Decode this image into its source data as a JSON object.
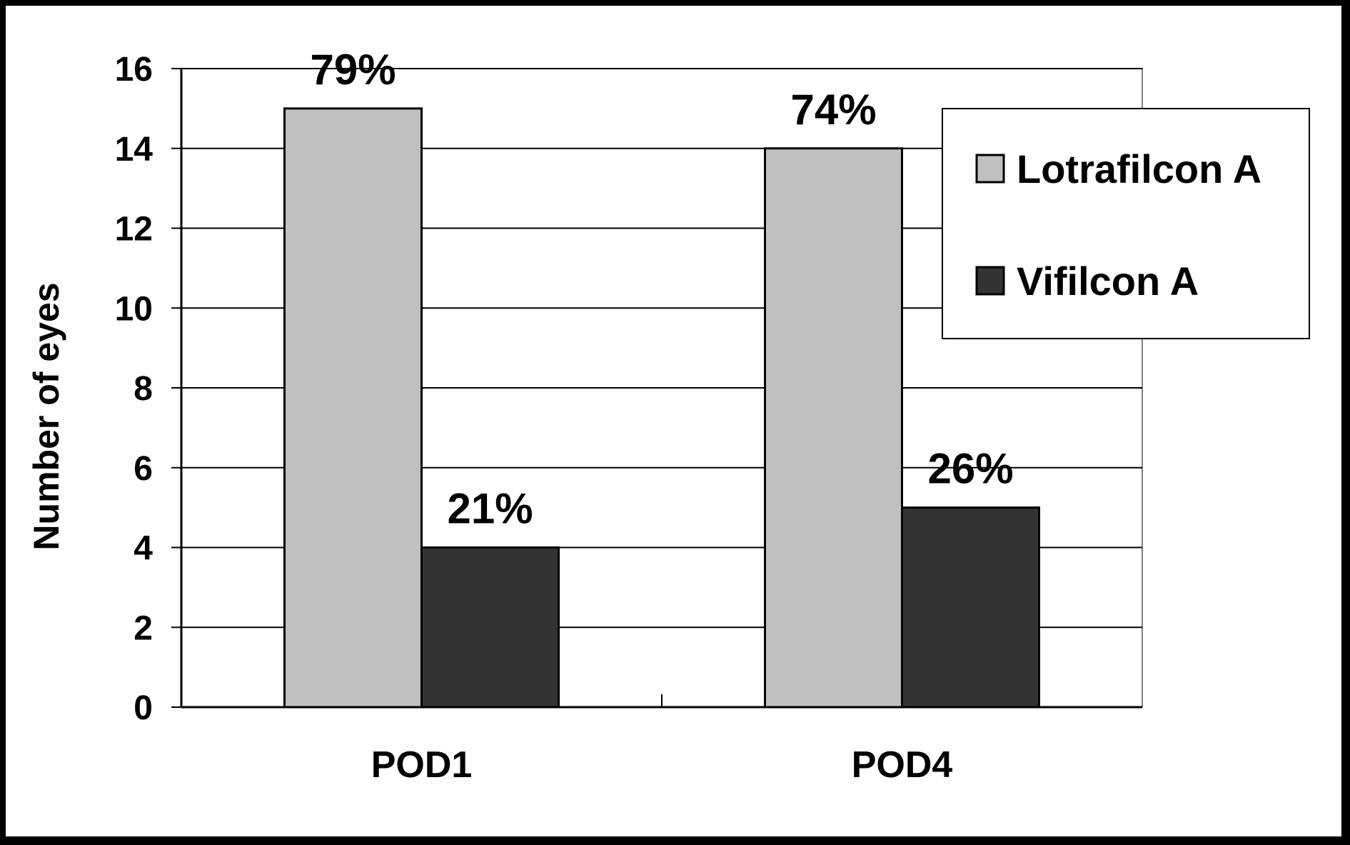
{
  "chart_data": {
    "type": "bar",
    "categories": [
      "POD1",
      "POD4"
    ],
    "series": [
      {
        "name": "Lotrafilcon A",
        "values": [
          15,
          14
        ],
        "data_labels": [
          "79%",
          "74%"
        ],
        "color": "#c0c0c0"
      },
      {
        "name": "Vifilcon A",
        "values": [
          4,
          5
        ],
        "data_labels": [
          "21%",
          "26%"
        ],
        "color": "#333333"
      }
    ],
    "xlabel": "",
    "ylabel": "Number of eyes",
    "ylim": [
      0,
      16
    ],
    "yticks": [
      0,
      2,
      4,
      6,
      8,
      10,
      12,
      14,
      16
    ],
    "grid": true,
    "legend_position": "top-right"
  }
}
